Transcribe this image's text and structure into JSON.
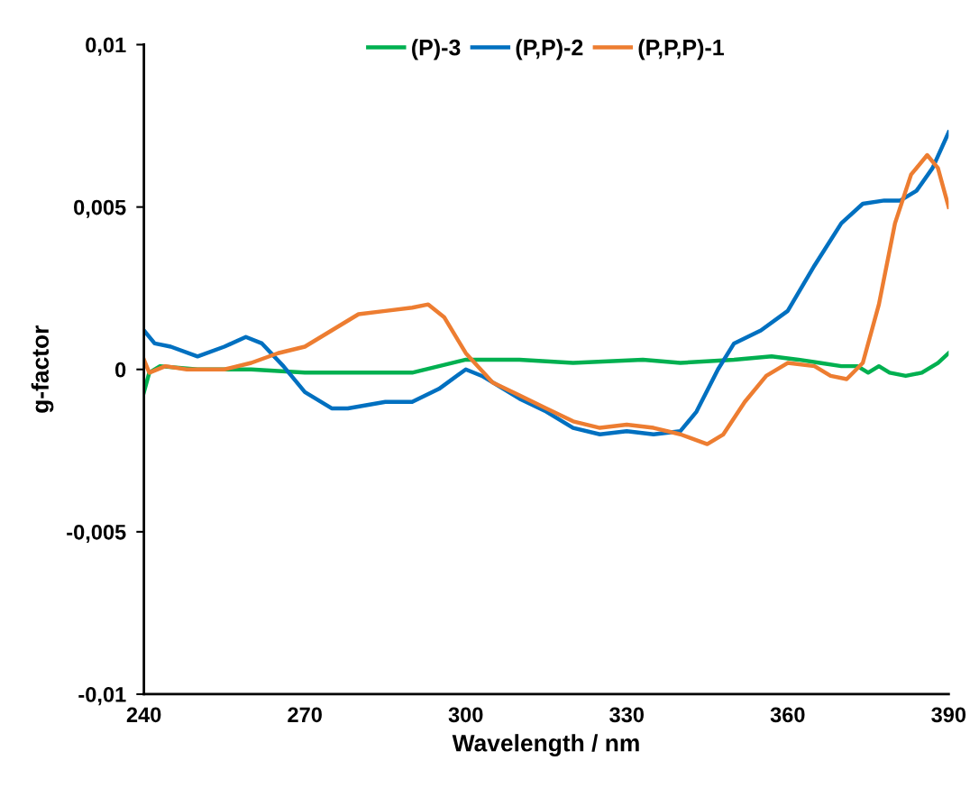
{
  "chart_data": {
    "type": "line",
    "xlabel": "Wavelength / nm",
    "ylabel": "g-factor",
    "xlim": [
      240,
      390
    ],
    "xticks": [
      240,
      270,
      300,
      330,
      360,
      390
    ],
    "ylim": [
      -0.01,
      0.01
    ],
    "yticks": [
      {
        "value": -0.01,
        "label": "-0,01"
      },
      {
        "value": -0.005,
        "label": "-0,005"
      },
      {
        "value": 0,
        "label": "0"
      },
      {
        "value": 0.005,
        "label": "0,005"
      },
      {
        "value": 0.01,
        "label": "0,01"
      }
    ],
    "grid": false,
    "legend": "top",
    "marker": "none",
    "line_style": "solid",
    "series": [
      {
        "name": "(P)-3",
        "color": "#00b050",
        "x": [
          240,
          241,
          243,
          250,
          260,
          270,
          290,
          295,
          300,
          310,
          320,
          333,
          340,
          350,
          357,
          362,
          366,
          370,
          373,
          375,
          377,
          379,
          382,
          385,
          388,
          390
        ],
        "values": [
          -0.0007,
          -0.0001,
          0.0001,
          0.0,
          0.0,
          -0.0001,
          -0.0001,
          0.0001,
          0.0003,
          0.0003,
          0.0002,
          0.0003,
          0.0002,
          0.0003,
          0.0004,
          0.0003,
          0.0002,
          0.0001,
          0.0001,
          -0.0001,
          0.0001,
          -0.0001,
          -0.0002,
          -0.0001,
          0.0002,
          0.0005
        ]
      },
      {
        "name": "(P,P)-2",
        "color": "#0070c0",
        "x": [
          240,
          242,
          245,
          250,
          255,
          259,
          262,
          266,
          270,
          275,
          278,
          285,
          290,
          295,
          300,
          303,
          310,
          315,
          320,
          325,
          330,
          335,
          340,
          343,
          347,
          350,
          355,
          360,
          365,
          370,
          374,
          378,
          381,
          384,
          387,
          390
        ],
        "values": [
          0.0012,
          0.0008,
          0.0007,
          0.0004,
          0.0007,
          0.001,
          0.0008,
          0.0001,
          -0.0007,
          -0.0012,
          -0.0012,
          -0.001,
          -0.001,
          -0.0006,
          0.0,
          -0.0002,
          -0.0009,
          -0.0013,
          -0.0018,
          -0.002,
          -0.0019,
          -0.002,
          -0.0019,
          -0.0013,
          0.0,
          0.0008,
          0.0012,
          0.0018,
          0.0032,
          0.0045,
          0.0051,
          0.0052,
          0.0052,
          0.0055,
          0.0062,
          0.0073
        ]
      },
      {
        "name": "(P,P,P)-1",
        "color": "#ed7d31",
        "x": [
          240,
          241,
          244,
          248,
          255,
          260,
          265,
          270,
          275,
          280,
          285,
          290,
          293,
          296,
          300,
          305,
          310,
          315,
          320,
          325,
          330,
          335,
          340,
          345,
          348,
          352,
          356,
          360,
          365,
          368,
          371,
          374,
          377,
          380,
          383,
          386,
          388,
          390
        ],
        "values": [
          0.0003,
          -0.0001,
          0.0001,
          0.0,
          0.0,
          0.0002,
          0.0005,
          0.0007,
          0.0012,
          0.0017,
          0.0018,
          0.0019,
          0.002,
          0.0016,
          0.0005,
          -0.0004,
          -0.0008,
          -0.0012,
          -0.0016,
          -0.0018,
          -0.0017,
          -0.0018,
          -0.002,
          -0.0023,
          -0.002,
          -0.001,
          -0.0002,
          0.0002,
          0.0001,
          -0.0002,
          -0.0003,
          0.0002,
          0.002,
          0.0045,
          0.006,
          0.0066,
          0.0062,
          0.005
        ]
      }
    ]
  }
}
